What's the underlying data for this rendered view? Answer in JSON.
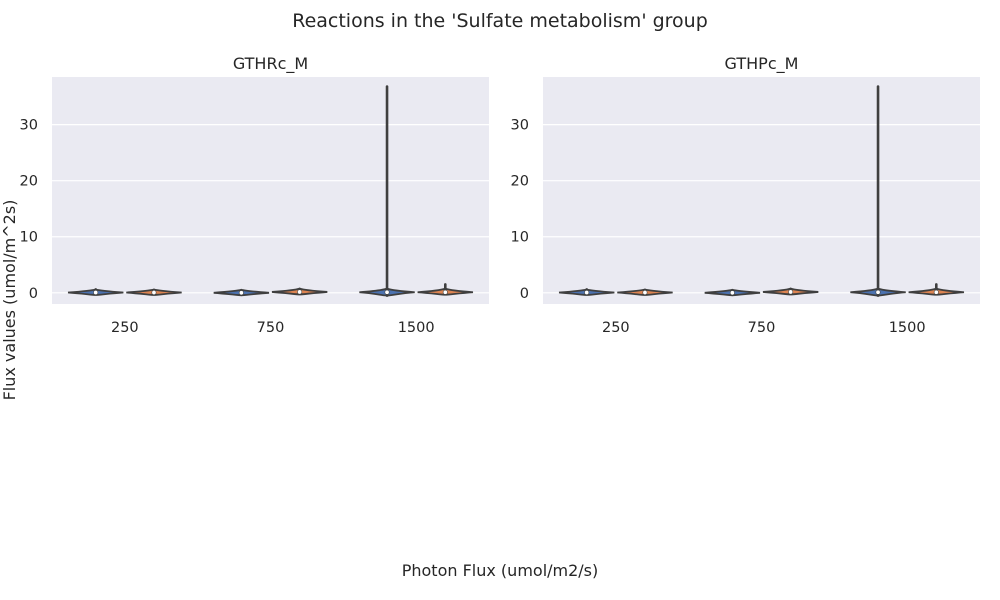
{
  "figure": {
    "title": "Reactions in the 'Sulfate metabolism' group",
    "xlabel": "Photon Flux (umol/m2/s)",
    "ylabel": "Flux values (umol/m^2s)"
  },
  "colors": {
    "panel_bg": "#eaeaf2",
    "grid": "#ffffff",
    "outline": "#3f3f3f",
    "violin_fill_a": "#4c72b0",
    "violin_fill_b": "#dd8452",
    "text": "#262626"
  },
  "chart_data": [
    {
      "type": "violin",
      "title": "GTHRc_M",
      "categories": [
        "250",
        "750",
        "1500"
      ],
      "ylim": [
        -2,
        38.5
      ],
      "yticks": [
        0,
        10,
        20,
        30
      ],
      "grid": true,
      "violins": [
        {
          "category": "250",
          "slot": 0,
          "min": -0.1,
          "max": 0.6,
          "median": 0.05,
          "q1": 0.0,
          "q3": 0.15
        },
        {
          "category": "250",
          "slot": 1,
          "min": -0.1,
          "max": 0.5,
          "median": 0.05,
          "q1": 0.0,
          "q3": 0.15
        },
        {
          "category": "750",
          "slot": 0,
          "min": 0.0,
          "max": 0.0,
          "median": 0.0,
          "q1": 0.0,
          "q3": 0.0
        },
        {
          "category": "750",
          "slot": 1,
          "min": -0.1,
          "max": 0.7,
          "median": 0.15,
          "q1": 0.0,
          "q3": 0.3
        },
        {
          "category": "1500",
          "slot": 0,
          "min": -0.5,
          "max": 36.8,
          "median": 0.1,
          "q1": 0.0,
          "q3": 0.3
        },
        {
          "category": "1500",
          "slot": 1,
          "min": -0.1,
          "max": 1.5,
          "median": 0.1,
          "q1": 0.0,
          "q3": 0.3
        }
      ]
    },
    {
      "type": "violin",
      "title": "GTHPc_M",
      "categories": [
        "250",
        "750",
        "1500"
      ],
      "ylim": [
        -2,
        38.5
      ],
      "yticks": [
        0,
        10,
        20,
        30
      ],
      "grid": true,
      "violins": [
        {
          "category": "250",
          "slot": 0,
          "min": -0.1,
          "max": 0.6,
          "median": 0.05,
          "q1": 0.0,
          "q3": 0.15
        },
        {
          "category": "250",
          "slot": 1,
          "min": -0.1,
          "max": 0.5,
          "median": 0.05,
          "q1": 0.0,
          "q3": 0.15
        },
        {
          "category": "750",
          "slot": 0,
          "min": 0.0,
          "max": 0.0,
          "median": 0.0,
          "q1": 0.0,
          "q3": 0.0
        },
        {
          "category": "750",
          "slot": 1,
          "min": -0.1,
          "max": 0.7,
          "median": 0.15,
          "q1": 0.0,
          "q3": 0.3
        },
        {
          "category": "1500",
          "slot": 0,
          "min": -0.5,
          "max": 36.8,
          "median": 0.1,
          "q1": 0.0,
          "q3": 0.3
        },
        {
          "category": "1500",
          "slot": 1,
          "min": -0.1,
          "max": 1.5,
          "median": 0.1,
          "q1": 0.0,
          "q3": 0.3
        }
      ]
    }
  ]
}
